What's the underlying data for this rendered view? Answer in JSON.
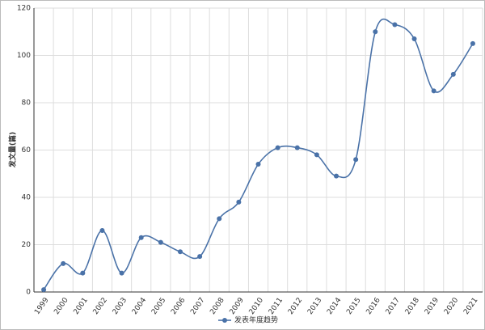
{
  "chart_data": {
    "type": "line",
    "y_label": "发文量(篇)",
    "categories": [
      "1999",
      "2000",
      "2001",
      "2002",
      "2003",
      "2004",
      "2005",
      "2006",
      "2007",
      "2008",
      "2009",
      "2010",
      "2011",
      "2012",
      "2013",
      "2014",
      "2015",
      "2016",
      "2017",
      "2018",
      "2019",
      "2020",
      "2021"
    ],
    "series": [
      {
        "name": "发表年度趋势",
        "color": "#4a72a8",
        "values": [
          1,
          12,
          8,
          26,
          8,
          23,
          21,
          17,
          15,
          31,
          38,
          54,
          61,
          61,
          58,
          49,
          56,
          110,
          113,
          107,
          85,
          92,
          105
        ]
      }
    ],
    "ylim": [
      0,
      120
    ],
    "yticks": [
      0,
      20,
      40,
      60,
      80,
      100,
      120
    ],
    "grid": true,
    "smooth": true,
    "legend": "bottom"
  }
}
